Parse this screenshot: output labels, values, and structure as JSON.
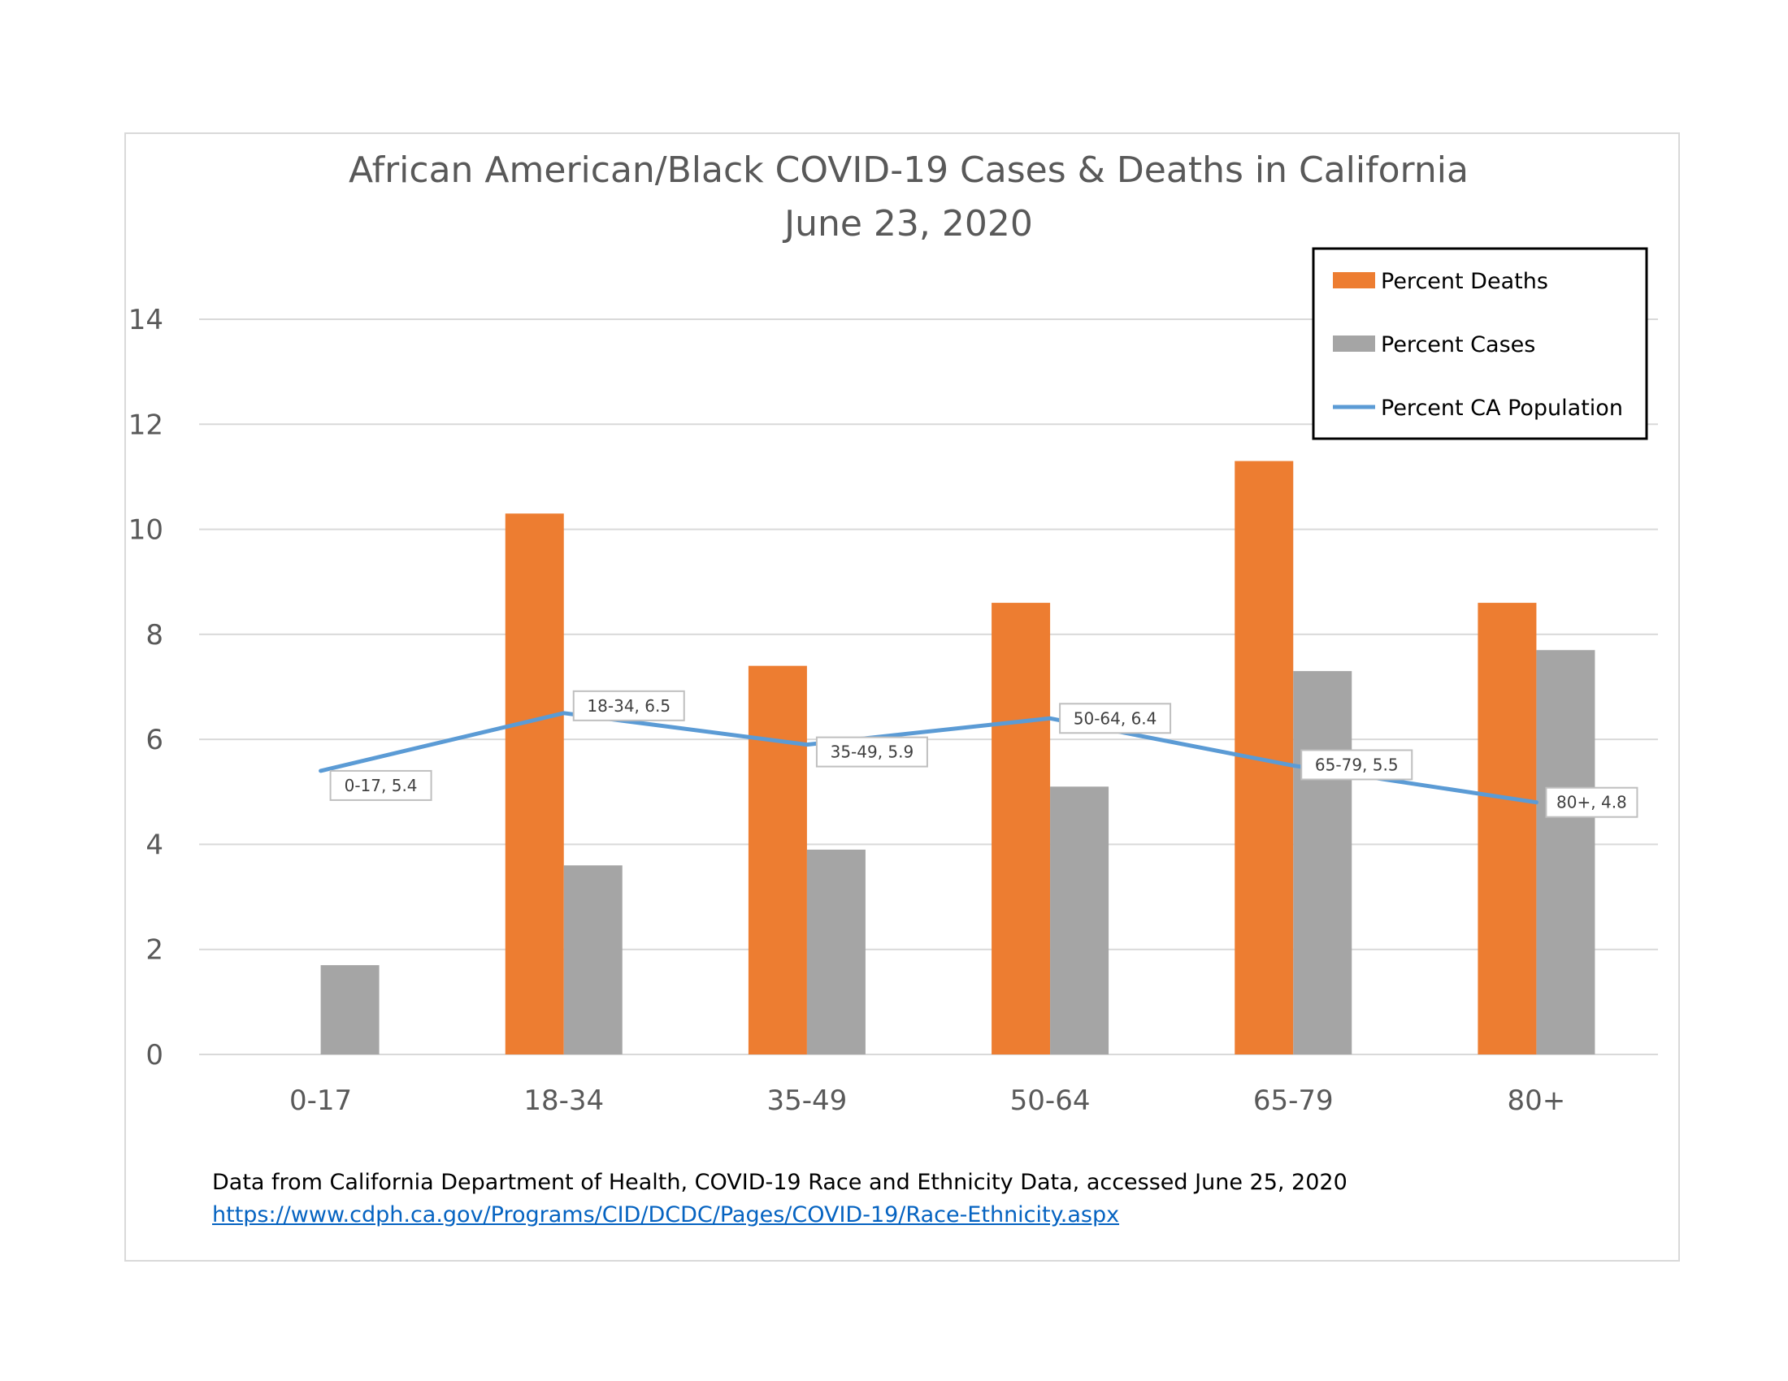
{
  "chart_data": {
    "type": "bar",
    "title": "African American/Black COVID-19 Cases & Deaths in California",
    "subtitle": "June 23, 2020",
    "categories": [
      "0-17",
      "18-34",
      "35-49",
      "50-64",
      "65-79",
      "80+"
    ],
    "series": [
      {
        "name": "Percent Deaths",
        "type": "bar",
        "color": "#ed7d31",
        "values": [
          0,
          10.3,
          7.4,
          8.6,
          11.3,
          8.6
        ]
      },
      {
        "name": "Percent Cases",
        "type": "bar",
        "color": "#a5a5a5",
        "values": [
          1.7,
          3.6,
          3.9,
          5.1,
          7.3,
          7.7
        ]
      },
      {
        "name": "Percent CA Population",
        "type": "line",
        "color": "#5b9bd5",
        "values": [
          5.4,
          6.5,
          5.9,
          6.4,
          5.5,
          4.8
        ]
      }
    ],
    "data_labels": [
      "0-17, 5.4",
      "18-34, 6.5",
      "35-49, 5.9",
      "50-64, 6.4",
      "65-79, 5.5",
      "80+, 4.8"
    ],
    "yticks": [
      "0",
      "2",
      "4",
      "6",
      "8",
      "10",
      "12",
      "14"
    ],
    "ylim": [
      0,
      14
    ],
    "xlabel": "",
    "ylabel": "",
    "grid": true,
    "legend_position": "top-right"
  },
  "source": {
    "note": "Data from California Department of Health, COVID-19 Race and Ethnicity Data, accessed June 25, 2020",
    "link": "https://www.cdph.ca.gov/Programs/CID/DCDC/Pages/COVID-19/Race-Ethnicity.aspx"
  }
}
